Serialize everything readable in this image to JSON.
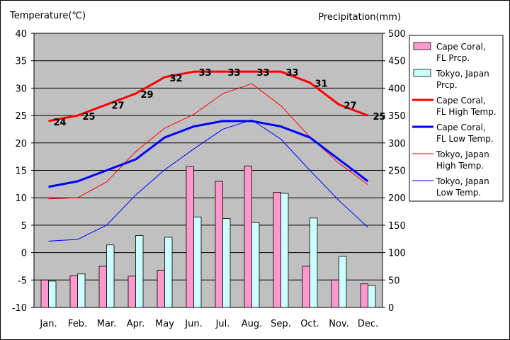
{
  "chart_data": {
    "type": "bar",
    "categories": [
      "Jan.",
      "Feb.",
      "Mar.",
      "Apr.",
      "May",
      "Jun.",
      "Jul.",
      "Aug.",
      "Sep.",
      "Oct.",
      "Nov.",
      "Dec."
    ],
    "ylabel": "Temperature(℃)",
    "y2label": "Precipitation(mm)",
    "ylim": [
      -10,
      40
    ],
    "y2lim": [
      0,
      500
    ],
    "yticks": [
      -10,
      -5,
      0,
      5,
      10,
      15,
      20,
      25,
      30,
      35,
      40
    ],
    "y2ticks": [
      0,
      50,
      100,
      150,
      200,
      250,
      300,
      350,
      400,
      450,
      500
    ],
    "grid": true,
    "legend_position": "right",
    "series": [
      {
        "name": "Cape Coral, FL Prcp.",
        "kind": "bar",
        "axis": "right",
        "color": "#ff99cc",
        "values": [
          50,
          58,
          75,
          57,
          68,
          257,
          230,
          258,
          210,
          75,
          50,
          43
        ]
      },
      {
        "name": "Tokyo, Japan Prcp.",
        "kind": "bar",
        "axis": "right",
        "color": "#ccffff",
        "values": [
          48,
          61,
          114,
          131,
          128,
          165,
          162,
          155,
          208,
          163,
          93,
          40
        ]
      },
      {
        "name": "Cape Coral, FL High Temp.",
        "kind": "line",
        "axis": "left",
        "color": "#ff0000",
        "width": 3,
        "values": [
          24,
          25,
          27,
          29,
          32,
          33,
          33,
          33,
          33,
          31,
          27,
          25
        ],
        "data_labels": [
          "24",
          "25",
          "27",
          "29",
          "32",
          "33",
          "33",
          "33",
          "33",
          "31",
          "27",
          "25"
        ]
      },
      {
        "name": "Cape Coral, FL Low Temp.",
        "kind": "line",
        "axis": "left",
        "color": "#0000ff",
        "width": 3,
        "values": [
          12,
          13,
          15,
          17,
          21,
          23,
          24,
          24,
          23,
          21,
          17,
          13
        ]
      },
      {
        "name": "Tokyo, Japan High Temp.",
        "kind": "line",
        "axis": "left",
        "color": "#ff0000",
        "width": 1,
        "values": [
          9.8,
          10,
          12.9,
          18.4,
          22.7,
          25.2,
          29,
          30.8,
          26.8,
          21.1,
          16.3,
          12.4
        ]
      },
      {
        "name": "Tokyo, Japan Low Temp.",
        "kind": "line",
        "axis": "left",
        "color": "#0000ff",
        "width": 1,
        "values": [
          2.1,
          2.4,
          5,
          10.5,
          15.1,
          18.9,
          22.5,
          24.2,
          20.7,
          15,
          9.5,
          4.6
        ]
      }
    ],
    "legend": [
      {
        "line1": "Cape Coral,",
        "line2": "FL Prcp."
      },
      {
        "line1": "Tokyo, Japan",
        "line2": "Prcp."
      },
      {
        "line1": "Cape Coral,",
        "line2": "FL High Temp."
      },
      {
        "line1": "Cape Coral,",
        "line2": "FL Low Temp."
      },
      {
        "line1": "Tokyo, Japan",
        "line2": "High Temp."
      },
      {
        "line1": "Tokyo, Japan",
        "line2": "Low Temp."
      }
    ]
  }
}
